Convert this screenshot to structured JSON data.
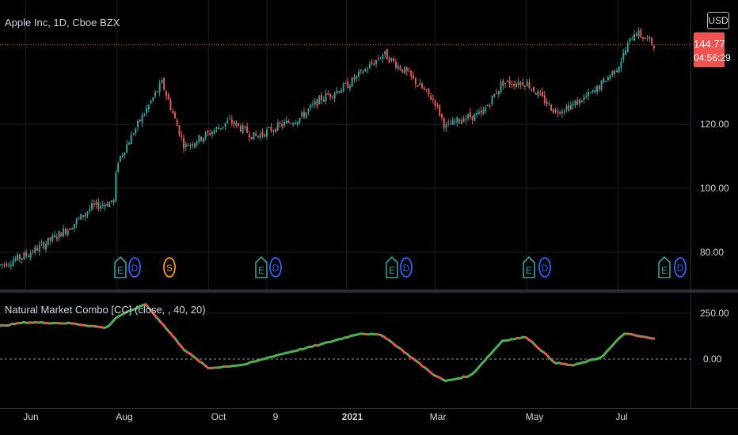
{
  "symbol_title": "Apple Inc, 1D, Cboe BZX",
  "currency_button": "USD",
  "last_price": "144.77",
  "countdown": "04:56:29",
  "price_axis": [
    "120.00",
    "100.00",
    "80.00"
  ],
  "indicator": {
    "title": "Natural Market Combo [CC] (close, , 40, 20)",
    "axis": [
      "250.00",
      "0.00"
    ]
  },
  "time_axis": [
    "Jun",
    "Aug",
    "Oct",
    "9",
    "2021",
    "Mar",
    "May",
    "Jul"
  ],
  "events": [
    {
      "letter": "E",
      "kind": "earnings"
    },
    {
      "letter": "D",
      "kind": "dividend"
    },
    {
      "letter": "S",
      "kind": "split"
    },
    {
      "letter": "E",
      "kind": "earnings"
    },
    {
      "letter": "D",
      "kind": "dividend"
    },
    {
      "letter": "E",
      "kind": "earnings"
    },
    {
      "letter": "D",
      "kind": "dividend"
    },
    {
      "letter": "E",
      "kind": "earnings"
    },
    {
      "letter": "D",
      "kind": "dividend"
    },
    {
      "letter": "E",
      "kind": "earnings"
    },
    {
      "letter": "D",
      "kind": "dividend"
    }
  ],
  "colors": {
    "up": "#26a69a",
    "down": "#ef5350",
    "ind_up": "#4caf50",
    "ind_down": "#ef5350",
    "earn": "#26a69a",
    "div": "#2962ff",
    "split": "#ff9800"
  },
  "chart_data": [
    {
      "type": "line",
      "title": "Apple Inc, 1D, Cboe BZX",
      "x": [
        "2020-05-15",
        "2020-06-01",
        "2020-06-15",
        "2020-07-01",
        "2020-07-15",
        "2020-07-30",
        "2020-08-01",
        "2020-08-15",
        "2020-08-31",
        "2020-09-15",
        "2020-10-01",
        "2020-10-15",
        "2020-11-01",
        "2020-11-15",
        "2020-12-01",
        "2020-12-15",
        "2021-01-01",
        "2021-01-26",
        "2021-02-10",
        "2021-03-01",
        "2021-03-08",
        "2021-03-20",
        "2021-04-01",
        "2021-04-15",
        "2021-05-01",
        "2021-05-20",
        "2021-06-01",
        "2021-06-15",
        "2021-07-01",
        "2021-07-12",
        "2021-07-25"
      ],
      "series": [
        {
          "values": [
            76,
            79,
            83,
            88,
            94,
            96,
            108,
            120,
            133,
            113,
            117,
            121,
            116,
            119,
            122,
            128,
            132,
            142,
            136,
            127,
            119,
            122,
            123,
            133,
            133,
            124,
            126,
            130,
            138,
            149,
            145
          ]
        }
      ],
      "ylim": [
        72,
        150
      ],
      "last": 144.77
    },
    {
      "type": "line",
      "title": "Natural Market Combo [CC] (close, , 40, 20)",
      "x": [
        "2020-05-15",
        "2020-06-01",
        "2020-07-01",
        "2020-07-25",
        "2020-08-01",
        "2020-08-20",
        "2020-09-15",
        "2020-10-01",
        "2020-10-25",
        "2020-11-15",
        "2020-12-15",
        "2021-01-10",
        "2021-01-25",
        "2021-02-10",
        "2021-03-01",
        "2021-03-08",
        "2021-03-25",
        "2021-04-15",
        "2021-05-01",
        "2021-05-20",
        "2021-06-01",
        "2021-06-20",
        "2021-07-05",
        "2021-07-25"
      ],
      "series": [
        {
          "values": [
            180,
            200,
            195,
            170,
            230,
            300,
            50,
            -50,
            -30,
            20,
            80,
            140,
            130,
            30,
            -90,
            -120,
            -90,
            100,
            120,
            -20,
            -35,
            10,
            140,
            110
          ]
        }
      ],
      "zero_line": true
    }
  ]
}
